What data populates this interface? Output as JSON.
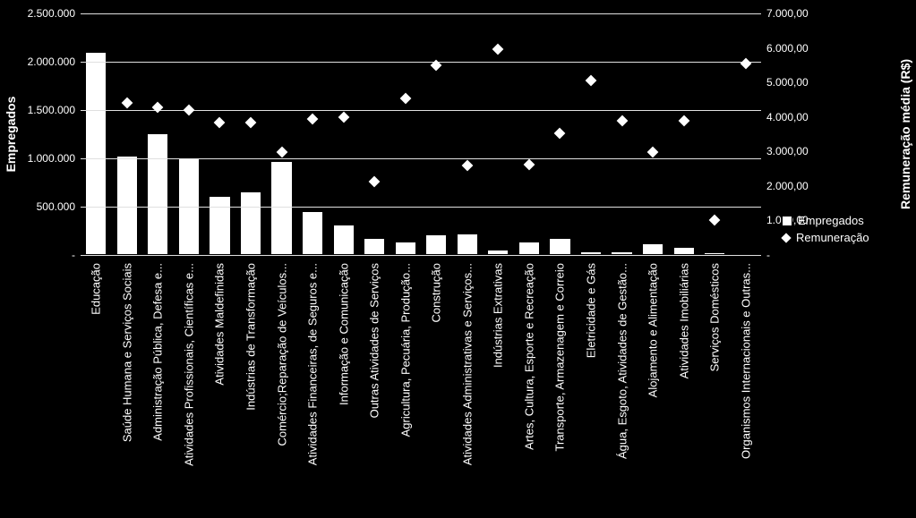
{
  "chart": {
    "type": "bar+scatter",
    "background_color": "#000000",
    "bar_color": "#ffffff",
    "bar_border_color": "#000000",
    "marker_shape": "diamond",
    "marker_color": "#ffffff",
    "grid_color": "#e0e0e0",
    "text_color": "#ffffff",
    "font_family": "Arial",
    "bar_width": 0.7,
    "y_left": {
      "title": "Empregados",
      "min": 0,
      "max": 2500000,
      "step": 500000,
      "tick_labels": [
        "-",
        "500.000",
        "1.000.000",
        "1.500.000",
        "2.000.000",
        "2.500.000"
      ],
      "title_fontsize": 14,
      "label_fontsize": 12
    },
    "y_right": {
      "title": "Remuneração média (R$)",
      "min": 0,
      "max": 7000,
      "step": 1000,
      "tick_labels": [
        "-",
        "1.000,00",
        "2.000,00",
        "3.000,00",
        "4.000,00",
        "5.000,00",
        "6.000,00",
        "7.000,00"
      ],
      "title_fontsize": 14,
      "label_fontsize": 12
    },
    "categories": [
      "Educação",
      "Saúde Humana e Serviços Sociais",
      "Administração Pública, Defesa e...",
      "Atividades Profissionais, Científicas e...",
      "Atividades Maldefinidas",
      "Indústrias de Transformação",
      "Comércio;Reparação de Veículos...",
      "Atividades Financeiras, de Seguros e...",
      "Informação e Comunicação",
      "Outras Atividades de Serviços",
      "Agricultura, Pecuária, Produção...",
      "Construção",
      "Atividades Administrativas e Serviços...",
      "Indústrias Extrativas",
      "Artes, Cultura, Esporte e Recreação",
      "Transporte, Armazenagem e Correio",
      "Eletricidade e Gás",
      "Água, Esgoto, Atividades de Gestão...",
      "Alojamento e Alimentação",
      "Atividades Imobiliárias",
      "Serviços Domésticos",
      "Organismos Internacionais e Outras..."
    ],
    "empregados": [
      2100000,
      1030000,
      1260000,
      1010000,
      610000,
      660000,
      970000,
      450000,
      315000,
      180000,
      140000,
      210000,
      220000,
      60000,
      140000,
      180000,
      40000,
      40000,
      120000,
      80000,
      30000,
      10000
    ],
    "remuneracao": [
      null,
      4420,
      4280,
      4200,
      3830,
      3830,
      2990,
      3940,
      4000,
      2120,
      4530,
      5500,
      2580,
      5960,
      2620,
      3520,
      5050,
      3880,
      2970,
      3900,
      1000,
      5550
    ],
    "legend": {
      "position": "right",
      "items": [
        {
          "label": "Empregados",
          "type": "bar"
        },
        {
          "label": "Remuneração",
          "type": "diamond"
        }
      ]
    },
    "x_label_rotation": -90,
    "x_label_fontsize": 13
  }
}
